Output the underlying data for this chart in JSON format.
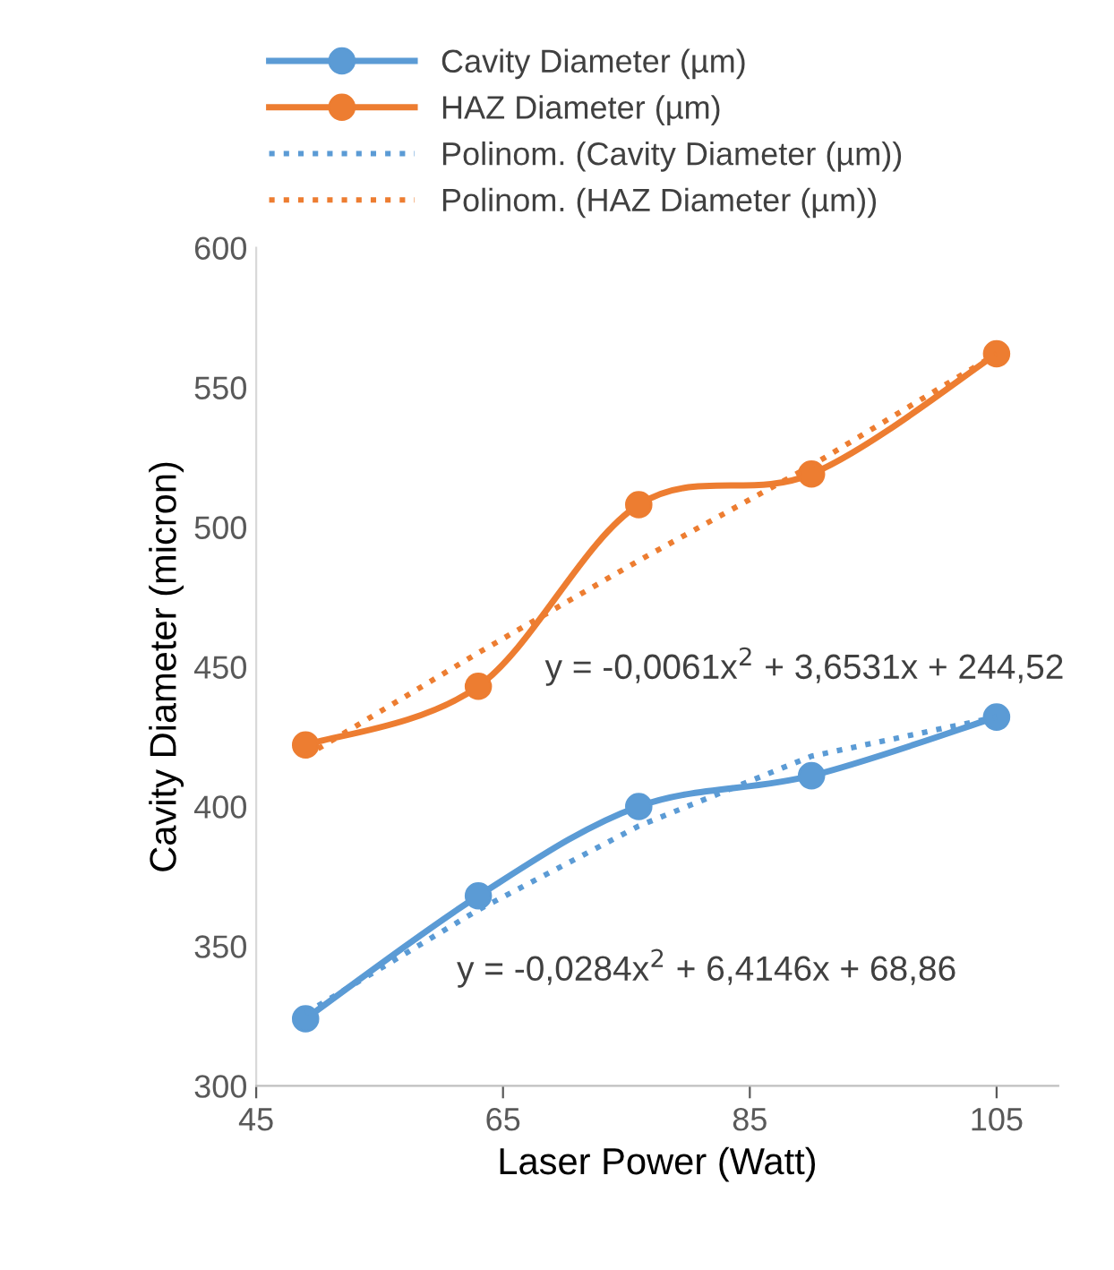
{
  "chart_data": {
    "type": "line",
    "xlabel": "Laser Power (Watt)",
    "ylabel": "Cavity Diameter (micron)",
    "xlim": [
      45,
      110
    ],
    "xticks": [
      45,
      65,
      85,
      105
    ],
    "ylim": [
      300,
      600
    ],
    "yticks": [
      300,
      350,
      400,
      450,
      500,
      550,
      600
    ],
    "x": [
      49,
      63,
      76,
      90,
      105
    ],
    "series": [
      {
        "name": "Cavity Diameter (µm)",
        "color": "#5b9bd5",
        "values": [
          324,
          368,
          400,
          411,
          432
        ],
        "marker": "circle",
        "line_style": "solid"
      },
      {
        "name": "HAZ Diameter (µm)",
        "color": "#ed7d31",
        "values": [
          422,
          443,
          508,
          519,
          562
        ],
        "marker": "circle",
        "line_style": "solid"
      },
      {
        "name": "Polinom. (Cavity Diameter (µm))",
        "color": "#5b9bd5",
        "values": [
          326,
          363,
          393,
          418,
          432
        ],
        "marker": "none",
        "line_style": "dotted"
      },
      {
        "name": "Polinom. (HAZ Diameter (µm))",
        "color": "#ed7d31",
        "values": [
          418,
          455,
          488,
          522,
          562
        ],
        "marker": "none",
        "line_style": "dotted"
      }
    ],
    "annotations": [
      "y = -0,0061x$^{2}$ + 3,6531x + 244,52",
      "y = -0,0284x$^{2}$ + 6,4146x + 68,86"
    ],
    "grid": false,
    "legend": "top left"
  }
}
